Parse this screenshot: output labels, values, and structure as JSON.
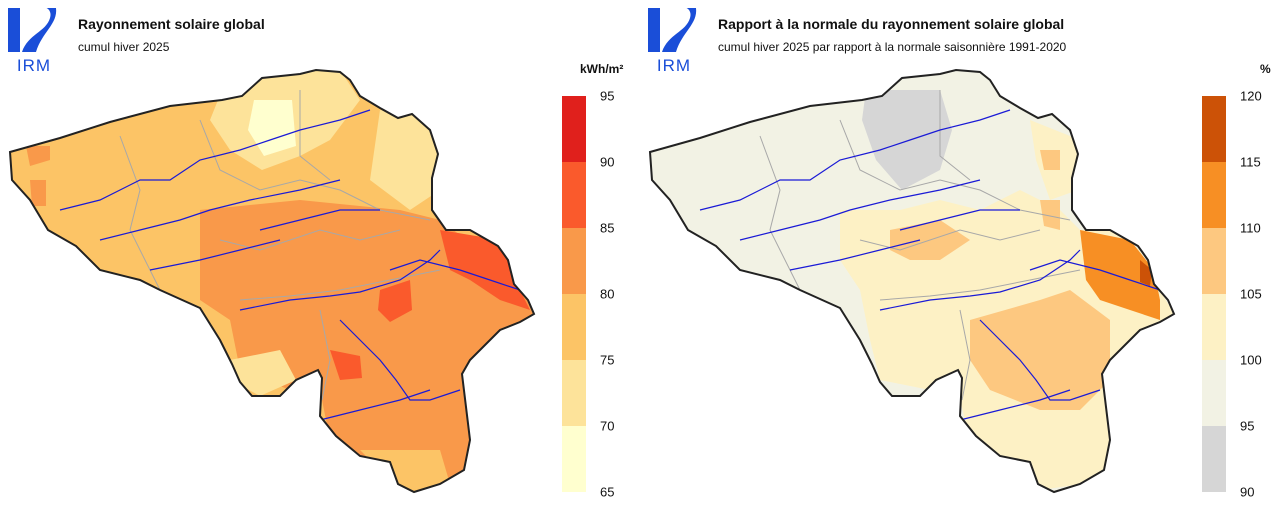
{
  "left": {
    "logo_text": "IRM",
    "title": "Rayonnement solaire global",
    "subtitle": "cumul hiver 2025",
    "unit": "kWh/m²",
    "legend": {
      "ticks": [
        "95",
        "90",
        "85",
        "80",
        "75",
        "70",
        "65"
      ],
      "colors": [
        "#e0201c",
        "#fa5a2c",
        "#f9994a",
        "#fcc466",
        "#fde39a",
        "#ffffcf"
      ]
    }
  },
  "right": {
    "logo_text": "IRM",
    "title": "Rapport à la normale du rayonnement solaire global",
    "subtitle": "cumul hiver 2025 par rapport à la normale saisonnière 1991-2020",
    "unit": "%",
    "legend": {
      "ticks": [
        "120",
        "115",
        "110",
        "105",
        "100",
        "95",
        "90"
      ],
      "colors": [
        "#cc5207",
        "#f78f24",
        "#fdc880",
        "#fdf1c5",
        "#f2f2e4",
        "#d6d6d6"
      ]
    }
  },
  "colors": {
    "logo_blue": "#1a4ed8",
    "border": "#222222",
    "rivers": "#1a1ad6",
    "provinces": "#a8a8a8"
  }
}
